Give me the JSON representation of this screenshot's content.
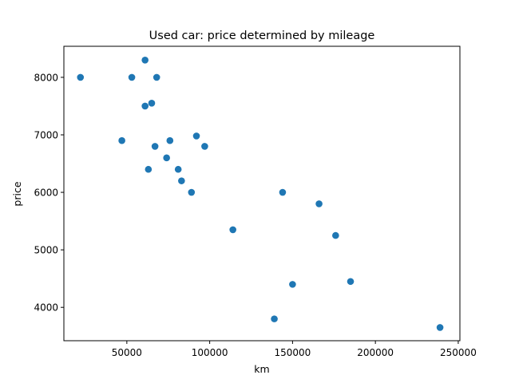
{
  "chart_data": {
    "type": "scatter",
    "title": "Used car: price determined by mileage",
    "xlabel": "km",
    "ylabel": "price",
    "xlim": [
      12000,
      251000
    ],
    "ylim": [
      3420,
      8540
    ],
    "xticks": [
      50000,
      100000,
      150000,
      200000,
      250000
    ],
    "yticks": [
      4000,
      5000,
      6000,
      7000,
      8000
    ],
    "grid": false,
    "marker_color": "#1f77b4",
    "points": [
      {
        "x": 22000,
        "y": 8000
      },
      {
        "x": 53000,
        "y": 8000
      },
      {
        "x": 68000,
        "y": 8000
      },
      {
        "x": 61000,
        "y": 8300
      },
      {
        "x": 61000,
        "y": 7500
      },
      {
        "x": 65000,
        "y": 7550
      },
      {
        "x": 47000,
        "y": 6900
      },
      {
        "x": 67000,
        "y": 6800
      },
      {
        "x": 76000,
        "y": 6900
      },
      {
        "x": 92000,
        "y": 6980
      },
      {
        "x": 97000,
        "y": 6800
      },
      {
        "x": 74000,
        "y": 6600
      },
      {
        "x": 63000,
        "y": 6400
      },
      {
        "x": 81000,
        "y": 6400
      },
      {
        "x": 83000,
        "y": 6200
      },
      {
        "x": 89000,
        "y": 6000
      },
      {
        "x": 144000,
        "y": 6000
      },
      {
        "x": 166000,
        "y": 5800
      },
      {
        "x": 114000,
        "y": 5350
      },
      {
        "x": 176000,
        "y": 5250
      },
      {
        "x": 150000,
        "y": 4400
      },
      {
        "x": 185000,
        "y": 4450
      },
      {
        "x": 139000,
        "y": 3800
      },
      {
        "x": 239000,
        "y": 3650
      }
    ]
  }
}
